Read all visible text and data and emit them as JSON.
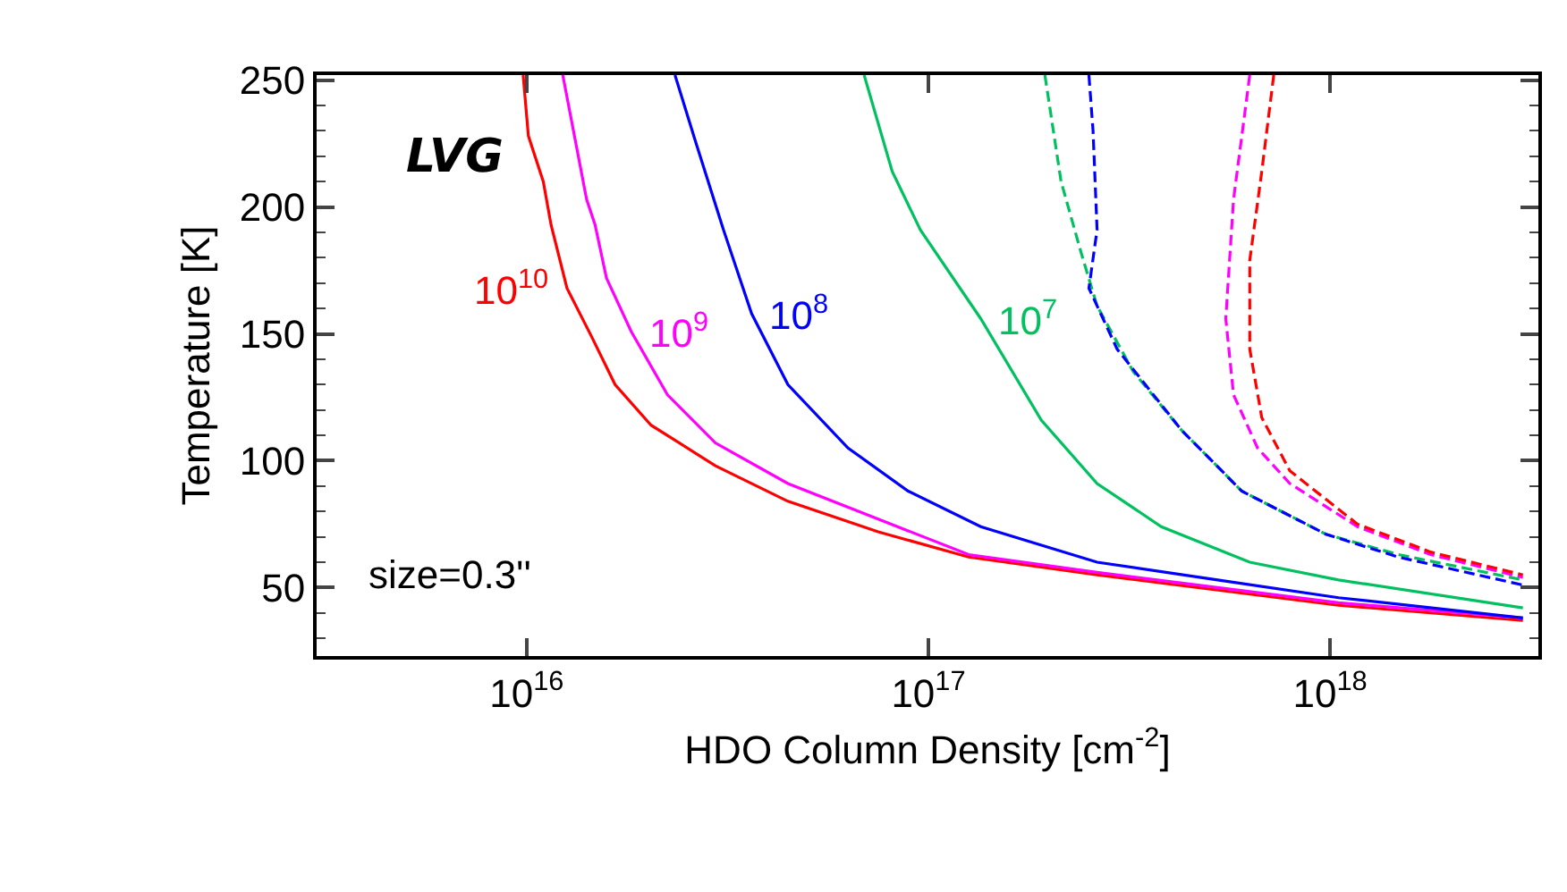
{
  "chart_data": {
    "type": "line",
    "xlabel": "HDO Column Density [cm$^{-2}$]",
    "ylabel": "Temperature [K]",
    "log": "x",
    "xlim": [
      3000000000000000.0,
      3.3e+18
    ],
    "ylim": [
      23,
      252
    ],
    "xticks": [
      {
        "value": 1e+16,
        "label": "10$^{16}$"
      },
      {
        "value": 1e+17,
        "label": "10$^{17}$"
      },
      {
        "value": 1e+18,
        "label": "10$^{18}$"
      }
    ],
    "yticks": [
      50,
      100,
      150,
      200,
      250
    ],
    "grid": false,
    "legend": false,
    "marker": "none",
    "annotations": [
      "LVG",
      "size=0.3''"
    ],
    "series": [
      {
        "name": "10$^{10}$",
        "color": "#ff0000",
        "line_style": "solid",
        "x": [
          9800000000000000.0,
          1.01e+16,
          1.1e+16,
          1.15e+16,
          1.26e+16,
          1.45e+16,
          1.66e+16,
          2.04e+16,
          2.95e+16,
          4.47e+16,
          7.5e+16,
          1.26e+17,
          2.63e+17,
          1.05e+18,
          3.02e+18
        ],
        "values": [
          252,
          228,
          210,
          193,
          168,
          149,
          130,
          114,
          98,
          84,
          72,
          62,
          55,
          43,
          37
        ]
      },
      {
        "name": "10$^{9}$",
        "color": "#ff00ff",
        "line_style": "solid",
        "x": [
          1.23e+16,
          1.41e+16,
          1.48e+16,
          1.58e+16,
          1.82e+16,
          2.24e+16,
          2.95e+16,
          4.47e+16,
          7.5e+16,
          1.26e+17,
          2.63e+17,
          1.05e+18,
          3.02e+18
        ],
        "values": [
          252,
          203,
          193,
          172,
          151,
          126,
          107,
          91,
          77,
          63,
          56,
          44,
          38
        ]
      },
      {
        "name": "10$^{8}$",
        "color": "#0000ff",
        "line_style": "solid",
        "x": [
          2.34e+16,
          2.63e+16,
          3.09e+16,
          3.63e+16,
          4.47e+16,
          6.31e+16,
          8.91e+16,
          1.35e+17,
          2.63e+17,
          5.25e+17,
          1.05e+18,
          3.02e+18
        ],
        "values": [
          252,
          226,
          191,
          158,
          130,
          105,
          88,
          74,
          60,
          53,
          46,
          38
        ]
      },
      {
        "name": "10$^{7}$",
        "color": "#00c060",
        "line_style": "solid",
        "x": [
          6.92e+16,
          8.13e+16,
          9.55e+16,
          1.35e+17,
          1.91e+17,
          2.63e+17,
          3.8e+17,
          6.31e+17,
          1.05e+18,
          3.02e+18
        ],
        "values": [
          252,
          214,
          191,
          156,
          116,
          91,
          74,
          60,
          53,
          42
        ]
      },
      {
        "color": "#00c060",
        "line_style": "dashed",
        "x": [
          1.95e+17,
          2.14e+17,
          2.4e+17,
          2.63e+17,
          3.24e+17,
          4.27e+17,
          6.03e+17,
          9.77e+17,
          1.48e+18,
          3.02e+18
        ],
        "values": [
          252,
          210,
          182,
          161,
          135,
          112,
          88,
          71,
          63,
          53
        ]
      },
      {
        "color": "#0000ff",
        "line_style": "dashed",
        "x": [
          2.51e+17,
          2.57e+17,
          2.63e+17,
          2.51e+17,
          2.95e+17,
          4.27e+17,
          6.03e+17,
          9.77e+17,
          1.48e+18,
          3.02e+18
        ],
        "values": [
          252,
          230,
          191,
          168,
          144,
          112,
          88,
          71,
          62,
          51
        ]
      },
      {
        "color": "#ff00ff",
        "line_style": "dashed",
        "x": [
          6.31e+17,
          5.75e+17,
          5.5e+17,
          5.75e+17,
          6.6e+17,
          7.94e+17,
          1.17e+18,
          1.78e+18,
          3.02e+18
        ],
        "values": [
          252,
          203,
          156,
          126,
          105,
          91,
          74,
          63,
          54
        ]
      },
      {
        "color": "#ff0000",
        "line_style": "dashed",
        "x": [
          7.24e+17,
          6.76e+17,
          6.31e+17,
          6.31e+17,
          6.76e+17,
          7.94e+17,
          1.17e+18,
          1.78e+18,
          3.02e+18
        ],
        "values": [
          252,
          214,
          179,
          144,
          117,
          96,
          75,
          64,
          55
        ]
      }
    ]
  }
}
